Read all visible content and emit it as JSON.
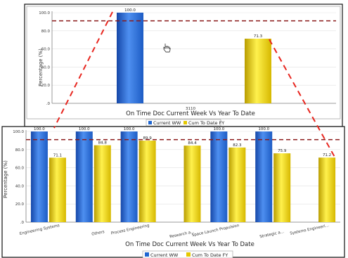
{
  "colors": {
    "current": "#1f66d1",
    "cum": "#e4c800",
    "target": "#8b1a1a",
    "connector": "#e8261f"
  },
  "annotation": "3110",
  "chart_data": [
    {
      "type": "bar",
      "title": "On Time Doc Current Week Vs Year To Date",
      "ylabel": "Percentage (%)",
      "ylim": [
        0,
        100
      ],
      "yticks": [
        "100.0",
        "80.0",
        "60.0",
        "40.0",
        "20.0",
        ".0"
      ],
      "target": 91,
      "categories": [
        ""
      ],
      "series": [
        {
          "name": "Current WW",
          "values": [
            100.0
          ],
          "labels": [
            "100.0"
          ]
        },
        {
          "name": "Cum To Date FY",
          "values": [
            71.3
          ],
          "labels": [
            "71.3"
          ]
        }
      ],
      "legend": "bottom-center"
    },
    {
      "type": "bar",
      "title": "On Time Doc Current Week Vs Year To Date",
      "ylabel": "Percentage (%)",
      "ylim": [
        0,
        100
      ],
      "yticks": [
        "100.0",
        "80.0",
        "60.0",
        "40.0",
        "20.0",
        ".0"
      ],
      "target": 91,
      "categories": [
        "Engineering Systems",
        "Others",
        "Process Engineering",
        "Research a...",
        "Space Launch Propulsion",
        "Strategic a...",
        "Systems Engineeri..."
      ],
      "series": [
        {
          "name": "Current WW",
          "values": [
            100.0,
            100.0,
            100.0,
            null,
            100.0,
            100.0,
            null
          ],
          "labels": [
            "100.0",
            "100.0",
            "100.0",
            "",
            "100.0",
            "100.0",
            ""
          ]
        },
        {
          "name": "Cum To Date FY",
          "values": [
            71.1,
            84.8,
            89.9,
            84.4,
            82.3,
            75.9,
            71.2
          ],
          "labels": [
            "71.1",
            "84.8",
            "89.9",
            "84.4",
            "82.3",
            "75.9",
            "71.2"
          ]
        }
      ],
      "legend": "bottom-center"
    }
  ]
}
